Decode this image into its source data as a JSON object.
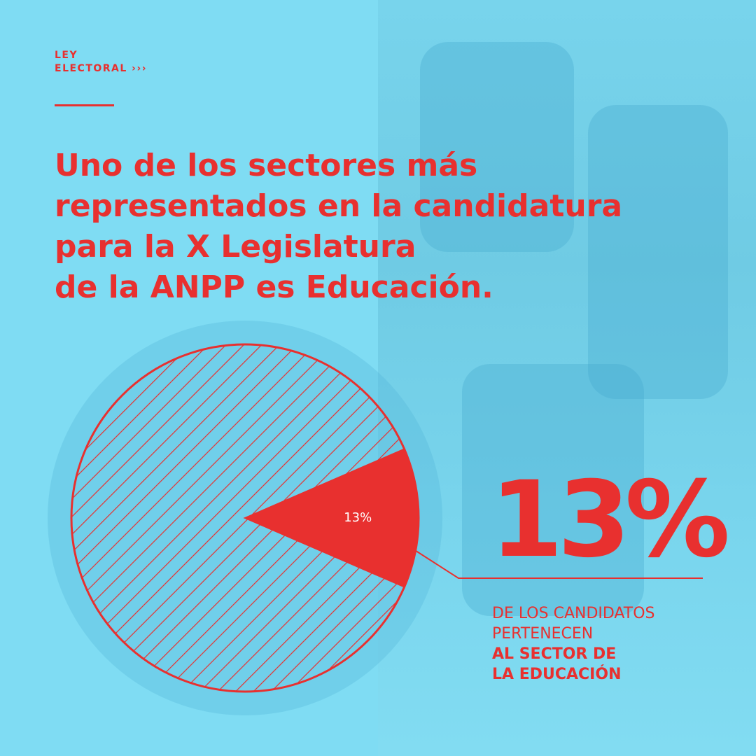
{
  "header": {
    "section_line1": "LEY",
    "section_line2": "ELECTORAL ›››"
  },
  "headline": {
    "line1": "Uno de los sectores más",
    "line2": "representados en la candidatura",
    "line3": "para la X Legislatura",
    "line4_prefix": "de la ANPP es ",
    "line4_bold": "Educación."
  },
  "chart_data": {
    "type": "pie",
    "slices": [
      {
        "label": "13%",
        "value": 13,
        "highlighted": true
      },
      {
        "label": "",
        "value": 87,
        "highlighted": false
      }
    ],
    "title": "",
    "colors": {
      "accent": "#e8302f",
      "background": "#7fdcf3"
    }
  },
  "callout": {
    "value": "13%",
    "caption_line1": "DE LOS CANDIDATOS",
    "caption_line2": "PERTENECEN",
    "caption_line3": "AL SECTOR DE",
    "caption_line4": "LA EDUCACIÓN"
  }
}
